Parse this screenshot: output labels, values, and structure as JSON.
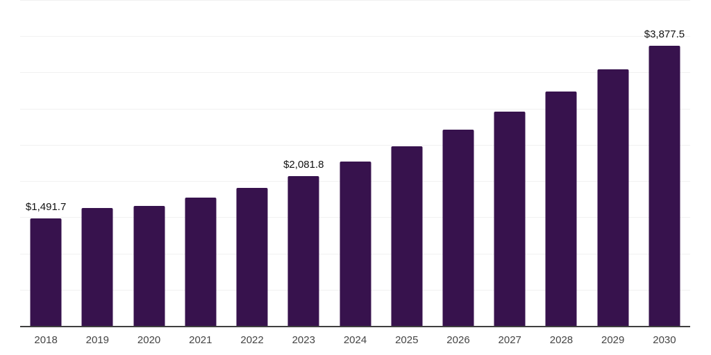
{
  "chart_data": {
    "type": "bar",
    "categories": [
      "2018",
      "2019",
      "2020",
      "2021",
      "2022",
      "2023",
      "2024",
      "2025",
      "2026",
      "2027",
      "2028",
      "2029",
      "2030"
    ],
    "values": [
      1491.7,
      1637,
      1669,
      1781,
      1912,
      2081.8,
      2281,
      2489,
      2722,
      2971,
      3243,
      3552,
      3877.5
    ],
    "value_labels": [
      {
        "category": "2018",
        "text": "$1,491.7"
      },
      {
        "category": "2023",
        "text": "$2,081.8"
      },
      {
        "category": "2030",
        "text": "$3,877.5"
      }
    ],
    "xlabel": "",
    "ylabel": "",
    "ylim": [
      0,
      4500
    ],
    "gridline_step": 500,
    "grid": true,
    "legend_position": "none",
    "colors": {
      "bar": "#37124D",
      "gridline": "#f1f1f1",
      "axis_line": "#3f3f3f",
      "value_label": "#111111",
      "tick_label": "#444444",
      "background": "#ffffff"
    }
  }
}
